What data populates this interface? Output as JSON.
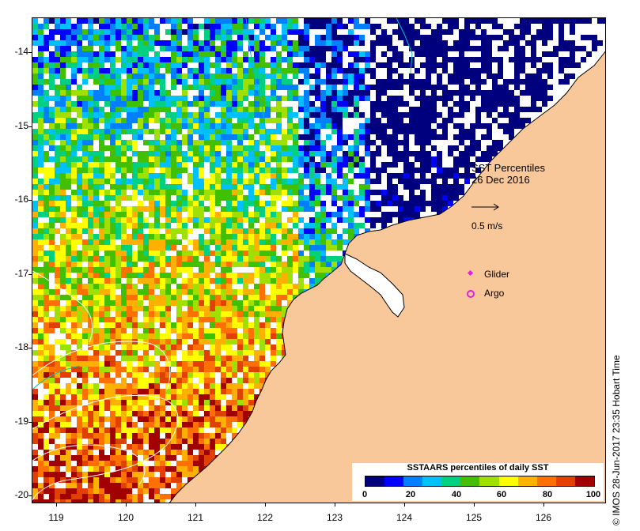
{
  "map": {
    "title_line1": "SST Percentiles",
    "title_line2": "26 Dec 2016",
    "velocity_label": "0.5 m/s",
    "legend": [
      {
        "label": "Glider",
        "color": "#e020e0"
      },
      {
        "label": "Argo",
        "color": "#e020e0"
      }
    ],
    "credit": "© IMOS 28-Jun-2017 23:35 Hobart Time",
    "lat_ticks": [
      "-14",
      "-15",
      "-16",
      "-17",
      "-18",
      "-19",
      "-20"
    ],
    "lon_ticks": [
      "119",
      "120",
      "121",
      "122",
      "123",
      "124",
      "125",
      "126"
    ],
    "colors": {
      "land": "#f8c89a",
      "no_data": "#ffffff",
      "coast": "#000000",
      "contour": "#ffffff",
      "ocean_line": "#00c0c0"
    }
  },
  "colorbar": {
    "title": "SSTAARS percentiles of daily SST",
    "ticks": [
      "0",
      "20",
      "40",
      "60",
      "80",
      "100"
    ],
    "colors": [
      "#00007f",
      "#0000ff",
      "#0080ff",
      "#00c0ff",
      "#00d080",
      "#40c000",
      "#a0e000",
      "#ffff00",
      "#ffb000",
      "#ff7000",
      "#e04000",
      "#a00000"
    ]
  }
}
